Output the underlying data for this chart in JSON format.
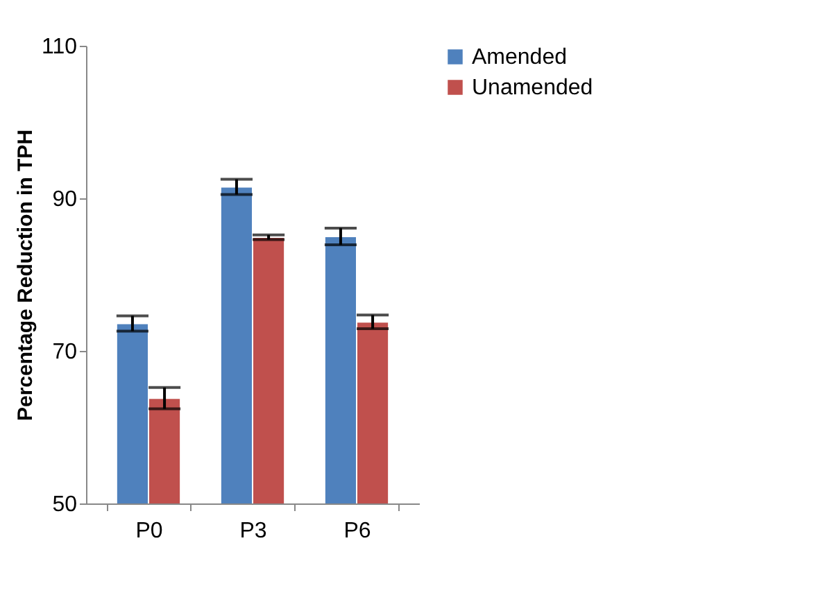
{
  "chart_data": {
    "type": "bar",
    "ylabel": "Percentage Reduction in TPH",
    "categories": [
      "P0",
      "P3",
      "P6"
    ],
    "series": [
      {
        "name": "Amended",
        "color": "#4f81bd",
        "values": [
          73.6,
          91.5,
          85.0
        ],
        "errors": [
          1.0,
          1.0,
          1.1
        ]
      },
      {
        "name": "Unamended",
        "color": "#c0504d",
        "values": [
          63.8,
          84.9,
          73.8
        ],
        "errors": [
          1.4,
          0.3,
          0.9
        ]
      }
    ],
    "ylim": [
      50,
      110
    ],
    "yticks": [
      50,
      70,
      90,
      110
    ],
    "grid": false,
    "legend": "right"
  }
}
